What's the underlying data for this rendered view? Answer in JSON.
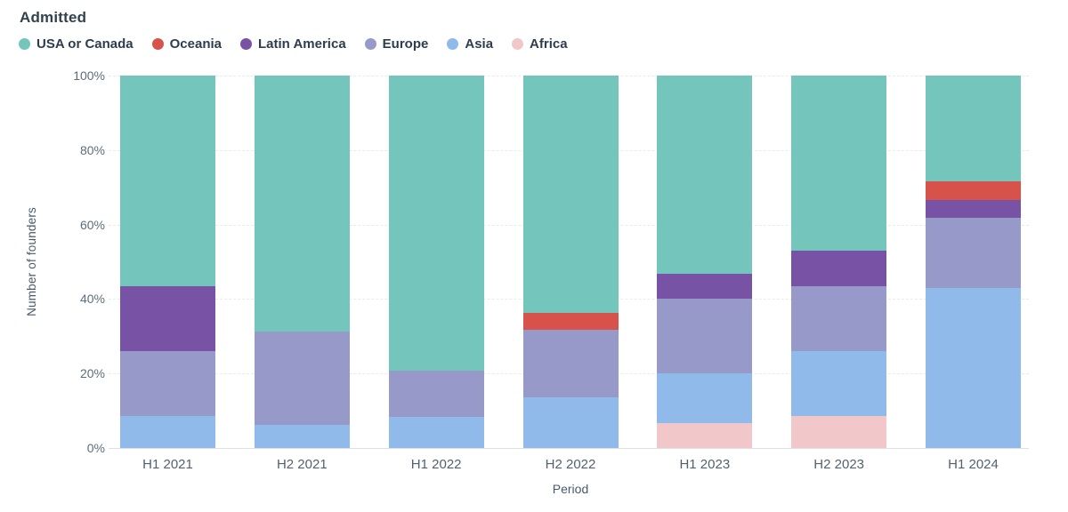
{
  "title": "Admitted",
  "y_axis": {
    "label": "Number of founders",
    "ticks": [
      {
        "label": "0%",
        "value": 0
      },
      {
        "label": "20%",
        "value": 20
      },
      {
        "label": "40%",
        "value": 40
      },
      {
        "label": "60%",
        "value": 60
      },
      {
        "label": "80%",
        "value": 80
      },
      {
        "label": "100%",
        "value": 100
      }
    ]
  },
  "x_axis": {
    "label": "Period"
  },
  "legend": {
    "items": [
      {
        "label": "USA or Canada",
        "color": "#74c5bb"
      },
      {
        "label": "Oceania",
        "color": "#d7524b"
      },
      {
        "label": "Latin America",
        "color": "#7852a5"
      },
      {
        "label": "Europe",
        "color": "#979ac9"
      },
      {
        "label": "Asia",
        "color": "#8fbae9"
      },
      {
        "label": "Africa",
        "color": "#f1c7ca"
      }
    ]
  },
  "colors": {
    "usa_or_canada": "#74c5bb",
    "oceania": "#d7524b",
    "latin_america": "#7852a5",
    "europe": "#979ac9",
    "asia": "#8fbae9",
    "africa": "#f1c7ca",
    "title_text": "#33424f",
    "tick_text": "#5d6d7c",
    "axis_title_text": "#4a5a6a",
    "gridline": "#e9ebf0",
    "axis_line": "#dde1e6",
    "background": "#ffffff"
  },
  "chart_data": {
    "type": "bar",
    "variant": "stacked-percent",
    "title": "Admitted",
    "xlabel": "Period",
    "ylabel": "Number of founders",
    "ylim": [
      0,
      100
    ],
    "grid": "horizontal-dashed",
    "legend_position": "top",
    "categories": [
      "H1 2021",
      "H2 2021",
      "H1 2022",
      "H2 2022",
      "H1 2023",
      "H2 2023",
      "H1 2024"
    ],
    "stack_order_bottom_to_top": [
      "Africa",
      "Asia",
      "Europe",
      "Latin America",
      "Oceania",
      "USA or Canada"
    ],
    "unit": "percent",
    "series": [
      {
        "name": "Africa",
        "color": "#f1c7ca",
        "values": [
          0,
          0,
          0,
          0,
          6.7,
          8.5,
          0
        ]
      },
      {
        "name": "Asia",
        "color": "#8fbae9",
        "values": [
          8.7,
          6.3,
          8.3,
          13.6,
          13.3,
          17.5,
          42.9
        ]
      },
      {
        "name": "Europe",
        "color": "#979ac9",
        "values": [
          17.4,
          25.0,
          12.5,
          18.2,
          20.0,
          17.5,
          19.0
        ]
      },
      {
        "name": "Latin America",
        "color": "#7852a5",
        "values": [
          17.4,
          0,
          0,
          0,
          6.7,
          9.5,
          4.8
        ]
      },
      {
        "name": "Oceania",
        "color": "#d7524b",
        "values": [
          0,
          0,
          0,
          4.5,
          0,
          0,
          4.8
        ]
      },
      {
        "name": "USA or Canada",
        "color": "#74c5bb",
        "values": [
          56.5,
          68.7,
          79.2,
          63.7,
          53.3,
          47.0,
          28.5
        ]
      }
    ]
  }
}
